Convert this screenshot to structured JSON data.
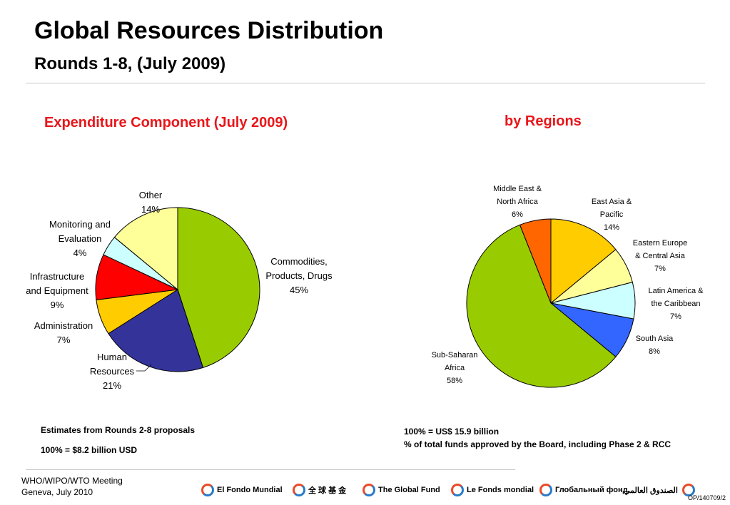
{
  "page": {
    "title": "Global Resources Distribution",
    "subtitle": "Rounds 1-8, (July 2009)"
  },
  "chart_data": [
    {
      "type": "pie",
      "title": "Expenditure Component (July 2009)",
      "slices": [
        {
          "label": "Commodities, Products, Drugs",
          "pct_label": "45%",
          "value": 45,
          "color": "#99cc00"
        },
        {
          "label": "Human Resources",
          "pct_label": "21%",
          "value": 21,
          "color": "#333399"
        },
        {
          "label": "Administration",
          "pct_label": "7%",
          "value": 7,
          "color": "#ffcc00"
        },
        {
          "label": "Infrastructure and Equipment",
          "pct_label": "9%",
          "value": 9,
          "color": "#ff0000"
        },
        {
          "label": "Monitoring and Evaluation",
          "pct_label": "4%",
          "value": 4,
          "color": "#ccffff"
        },
        {
          "label": "Other",
          "pct_label": "14%",
          "value": 14,
          "color": "#ffff99"
        }
      ]
    },
    {
      "type": "pie",
      "title": "by Regions",
      "slices": [
        {
          "label": "East Asia & Pacific",
          "pct_label": "14%",
          "value": 14,
          "color": "#ffcc00"
        },
        {
          "label": "Eastern Europe & Central Asia",
          "pct_label": "7%",
          "value": 7,
          "color": "#ffff99"
        },
        {
          "label": "Latin America & the Caribbean",
          "pct_label": "7%",
          "value": 7,
          "color": "#ccffff"
        },
        {
          "label": "South Asia",
          "pct_label": "8%",
          "value": 8,
          "color": "#3366ff"
        },
        {
          "label": "Sub-Saharan Africa",
          "pct_label": "58%",
          "value": 58,
          "color": "#99cc00"
        },
        {
          "label": "Middle East & North Africa",
          "pct_label": "6%",
          "value": 6,
          "color": "#ff6600"
        }
      ]
    }
  ],
  "notes": {
    "left_line1": "Estimates from Rounds 2-8 proposals",
    "left_line2": "100% = $8.2 billion USD",
    "right_line1": "100% = US$ 15.9 billion",
    "right_line2": "% of total funds approved by the Board, including Phase 2 & RCC"
  },
  "footer": {
    "line1": "WHO/WIPO/WTO Meeting",
    "line2": "Geneva, July 2010",
    "ref": "OP/140709/2",
    "partners": [
      "El Fondo Mundial",
      "全 球 基 金",
      "The Global Fund",
      "Le Fonds mondial",
      "Глобальный фонд",
      "الصندوق العالمي"
    ]
  }
}
